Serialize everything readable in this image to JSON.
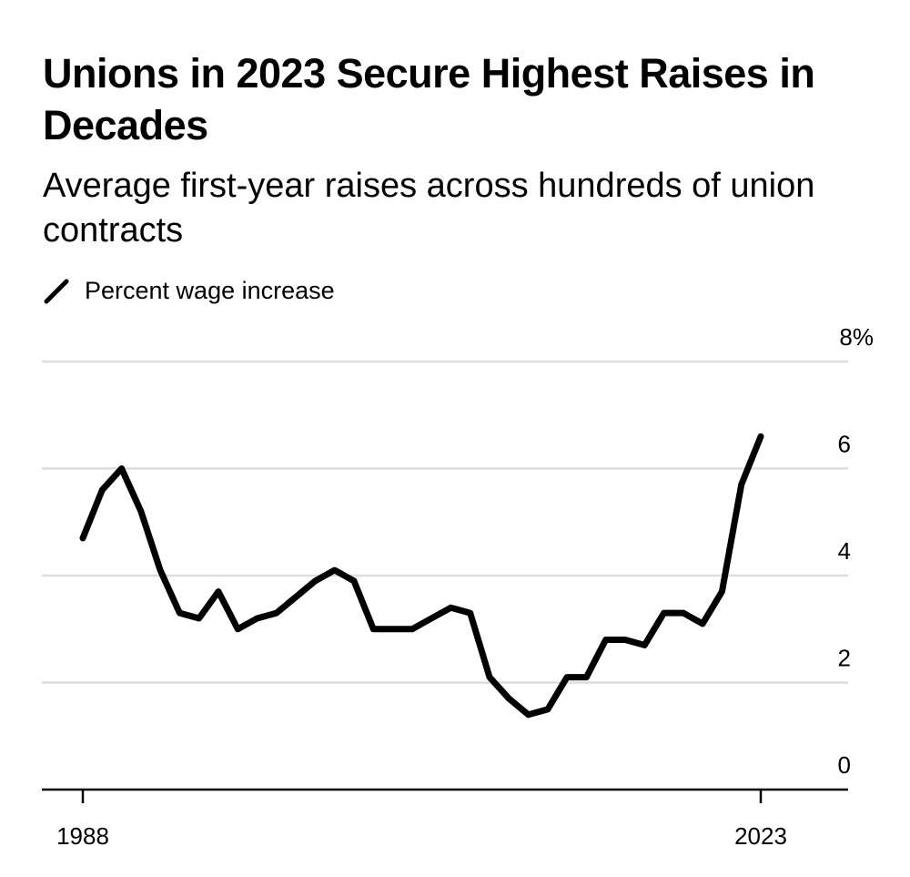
{
  "header": {
    "title": "Unions in 2023 Secure Highest Raises in Decades",
    "subtitle": "Average first-year raises across hundreds of union contracts"
  },
  "legend": {
    "icon": "line-swatch-icon",
    "label": "Percent wage increase"
  },
  "colors": {
    "line": "#000000",
    "grid": "#dddddd",
    "axis": "#000000"
  },
  "chart_data": {
    "type": "line",
    "title": "Unions in 2023 Secure Highest Raises in Decades",
    "subtitle": "Average first-year raises across hundreds of union contracts",
    "xlabel": "",
    "ylabel": "",
    "x": [
      1988,
      1989,
      1990,
      1991,
      1992,
      1993,
      1994,
      1995,
      1996,
      1997,
      1998,
      1999,
      2000,
      2001,
      2002,
      2003,
      2004,
      2005,
      2006,
      2007,
      2008,
      2009,
      2010,
      2011,
      2012,
      2013,
      2014,
      2015,
      2016,
      2017,
      2018,
      2019,
      2020,
      2021,
      2022,
      2023
    ],
    "series": [
      {
        "name": "Percent wage increase",
        "values": [
          4.7,
          5.6,
          6.0,
          5.2,
          4.1,
          3.3,
          3.2,
          3.7,
          3.0,
          3.2,
          3.3,
          3.6,
          3.9,
          4.1,
          3.9,
          3.0,
          3.0,
          3.0,
          3.2,
          3.4,
          3.3,
          2.1,
          1.7,
          1.4,
          1.5,
          2.1,
          2.1,
          2.8,
          2.8,
          2.7,
          3.3,
          3.3,
          3.1,
          3.7,
          5.7,
          6.6
        ]
      }
    ],
    "xlim": [
      1986,
      2027
    ],
    "ylim": [
      0,
      8
    ],
    "x_ticks": [
      1988,
      2023
    ],
    "x_tick_labels": [
      "1988",
      "2023"
    ],
    "y_ticks": [
      0,
      2,
      4,
      6,
      8
    ],
    "y_tick_labels": [
      "0",
      "2",
      "4",
      "6",
      "8%"
    ],
    "grid": true,
    "y_axis_side": "right",
    "legend_position": "top-left"
  }
}
